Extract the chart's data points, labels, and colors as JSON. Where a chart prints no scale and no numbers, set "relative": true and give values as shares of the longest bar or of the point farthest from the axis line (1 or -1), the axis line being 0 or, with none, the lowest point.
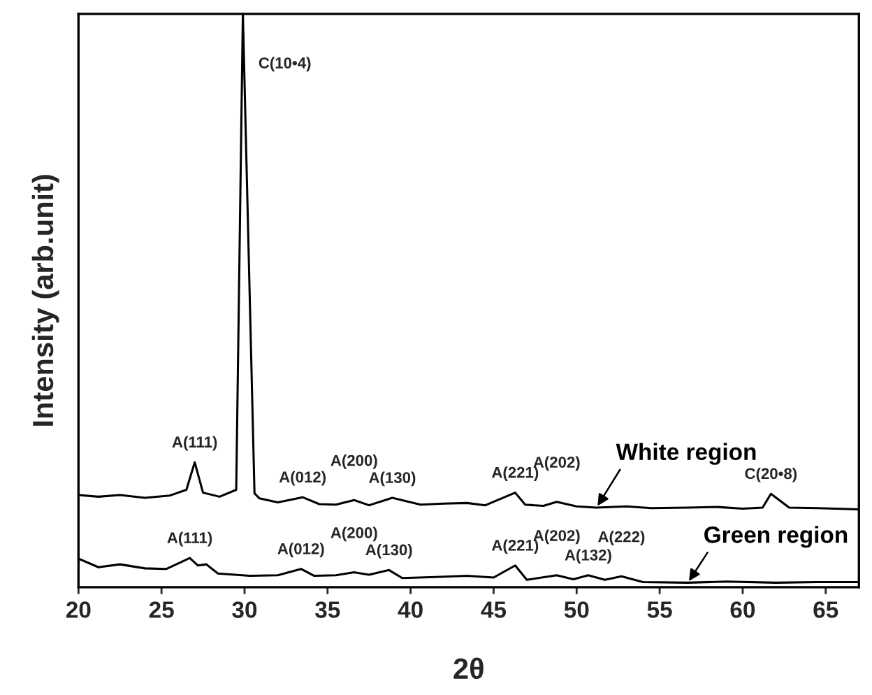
{
  "chart_data": {
    "type": "line",
    "relative": true,
    "xlabel": "2θ",
    "ylabel": "Intensity (arb.unit)",
    "xlim": [
      20,
      67
    ],
    "xticks": [
      20,
      25,
      30,
      35,
      40,
      45,
      50,
      55,
      60,
      65
    ],
    "series": [
      {
        "name": "White region",
        "color": "#000000",
        "x": [
          20,
          21.2,
          22.5,
          24,
          25.5,
          26.5,
          27.0,
          27.5,
          28.5,
          29.5,
          29.9,
          30.6,
          30.9,
          32,
          33.5,
          34.5,
          35.5,
          36.6,
          37.5,
          38.9,
          40.6,
          42,
          43.4,
          44.5,
          46.3,
          46.9,
          48,
          48.8,
          50,
          51.2,
          53,
          54.5,
          56.7,
          58.5,
          60,
          61.2,
          61.7,
          62.8,
          64.5,
          67
        ],
        "values": [
          0.161,
          0.158,
          0.161,
          0.156,
          0.16,
          0.17,
          0.218,
          0.165,
          0.158,
          0.17,
          1.0,
          0.164,
          0.155,
          0.148,
          0.157,
          0.145,
          0.144,
          0.152,
          0.143,
          0.156,
          0.144,
          0.146,
          0.147,
          0.143,
          0.165,
          0.144,
          0.142,
          0.149,
          0.141,
          0.139,
          0.141,
          0.138,
          0.139,
          0.14,
          0.137,
          0.139,
          0.163,
          0.139,
          0.138,
          0.136
        ]
      },
      {
        "name": "Green region",
        "color": "#000000",
        "x": [
          20,
          21.2,
          22.5,
          24,
          25.3,
          26.7,
          27.2,
          27.7,
          28.4,
          30.3,
          32,
          33.4,
          34.2,
          35.5,
          36.6,
          37.5,
          38.7,
          39.5,
          41.5,
          43.4,
          45,
          46.3,
          47.0,
          48.8,
          49.8,
          50.7,
          51.7,
          52.7,
          54.0,
          56.7,
          59,
          62,
          64.5,
          67
        ],
        "values": [
          0.05,
          0.035,
          0.04,
          0.033,
          0.032,
          0.051,
          0.038,
          0.04,
          0.024,
          0.02,
          0.021,
          0.032,
          0.02,
          0.021,
          0.026,
          0.022,
          0.03,
          0.016,
          0.018,
          0.02,
          0.017,
          0.038,
          0.013,
          0.021,
          0.014,
          0.021,
          0.013,
          0.019,
          0.009,
          0.008,
          0.01,
          0.008,
          0.009,
          0.009
        ]
      }
    ],
    "annotations": [
      {
        "text": "A(111)",
        "x": 27.0,
        "y": 0.218
      },
      {
        "text": "C(10•4)",
        "x": 29.9,
        "y": 1.0
      },
      {
        "text": "A(012)",
        "x": 33.5,
        "y": 0.157
      },
      {
        "text": "A(200)",
        "x": 36.6,
        "y": 0.152
      },
      {
        "text": "A(130)",
        "x": 38.9,
        "y": 0.156
      },
      {
        "text": "A(221)",
        "x": 46.3,
        "y": 0.165
      },
      {
        "text": "A(202)",
        "x": 48.8,
        "y": 0.149
      },
      {
        "text": "C(20•8)",
        "x": 61.7,
        "y": 0.163
      },
      {
        "text": "A(111)",
        "x": 26.7,
        "y": 0.051
      },
      {
        "text": "A(012)",
        "x": 33.4,
        "y": 0.032
      },
      {
        "text": "A(200)",
        "x": 36.6,
        "y": 0.026
      },
      {
        "text": "A(130)",
        "x": 38.7,
        "y": 0.03
      },
      {
        "text": "A(221)",
        "x": 46.3,
        "y": 0.038
      },
      {
        "text": "A(202)",
        "x": 48.8,
        "y": 0.021
      },
      {
        "text": "A(132)",
        "x": 50.7,
        "y": 0.021
      },
      {
        "text": "A(222)",
        "x": 52.7,
        "y": 0.019
      }
    ]
  }
}
